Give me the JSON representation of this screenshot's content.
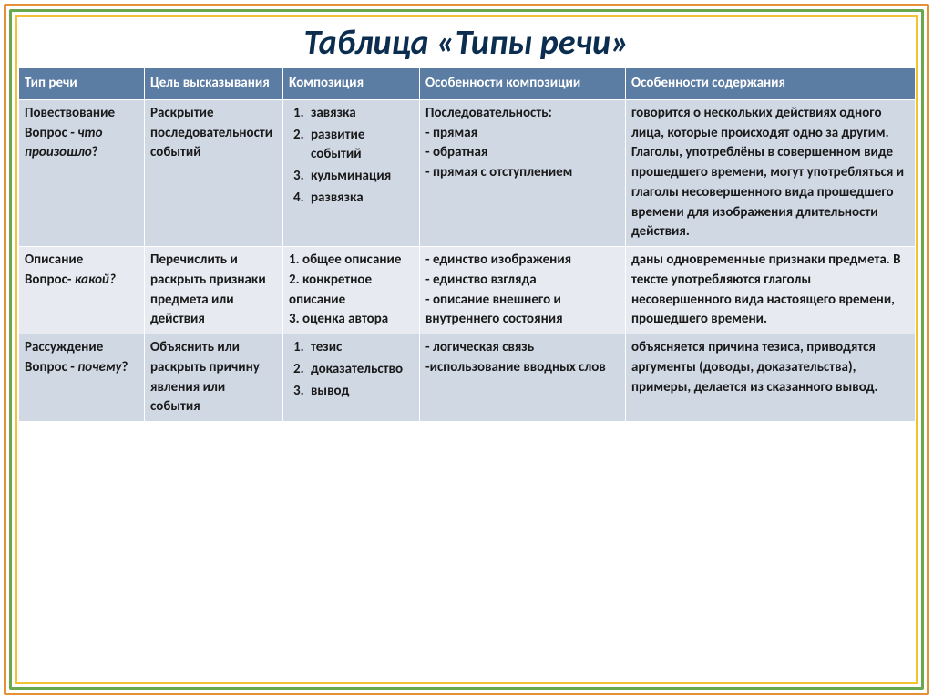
{
  "title": "Таблица «Типы речи»",
  "columns": [
    "Тип речи",
    "Цель высказывания",
    "Композиция",
    "Особенности композиции",
    "Особенности содержания"
  ],
  "rows": [
    {
      "type_name": "Повествование",
      "type_q_label": "Вопрос - ",
      "type_q_text": "что произошло",
      "goal": "Раскрытие последовательности событий",
      "comp_items": [
        "завязка",
        "развитие событий",
        "кульминация",
        "развязка"
      ],
      "feat_comp_head": "Последовательность:",
      "feat_comp_body": "- прямая\n- обратная\n- прямая с отступлением",
      "feat_content": "говорится о нескольких действиях одного лица, которые происходят одно за другим. Глаголы, употреблёны в совершенном виде прошедшего времени, могут употребляться и глаголы несовершенного вида прошедшего времени для изображения длительности действия."
    },
    {
      "type_name": "Описание",
      "type_q_label": "Вопрос- ",
      "type_q_text": "какой?",
      "goal": "Перечислить и раскрыть признаки предмета или действия",
      "comp_items": [
        "общее описание",
        "конкретное описание",
        "оценка автора"
      ],
      "feat_comp_head": "",
      "feat_comp_body": "- единство изображения\n- единство взгляда\n- описание внешнего и внутреннего состояния",
      "feat_content": "даны одновременные признаки предмета. В тексте употребляются глаголы несовершенного вида настоящего времени, прошедшего времени."
    },
    {
      "type_name": "Рассуждение",
      "type_q_label": "Вопрос - ",
      "type_q_text": "почему",
      "goal": "Объяснить или раскрыть причину явления или события",
      "comp_items": [
        "тезис",
        "доказательство",
        "вывод"
      ],
      "feat_comp_head": "",
      "feat_comp_body": "- логическая связь\n-использование вводных слов",
      "feat_content": "объясняется причина тезиса, приводятся аргументы (доводы, доказательства), примеры, делается из сказанного вывод."
    }
  ],
  "colors": {
    "header_bg": "#5b7ca3",
    "row_alt1": "#d0d8e4",
    "row_alt2": "#e7ebf1",
    "frame_outer": "#e69138",
    "frame_mid": "#6aa84f",
    "frame_inner": "#f1c232",
    "title_color": "#0b2d4f"
  },
  "font": {
    "family": "Calibri",
    "title_size": 38,
    "cell_size": 15
  }
}
